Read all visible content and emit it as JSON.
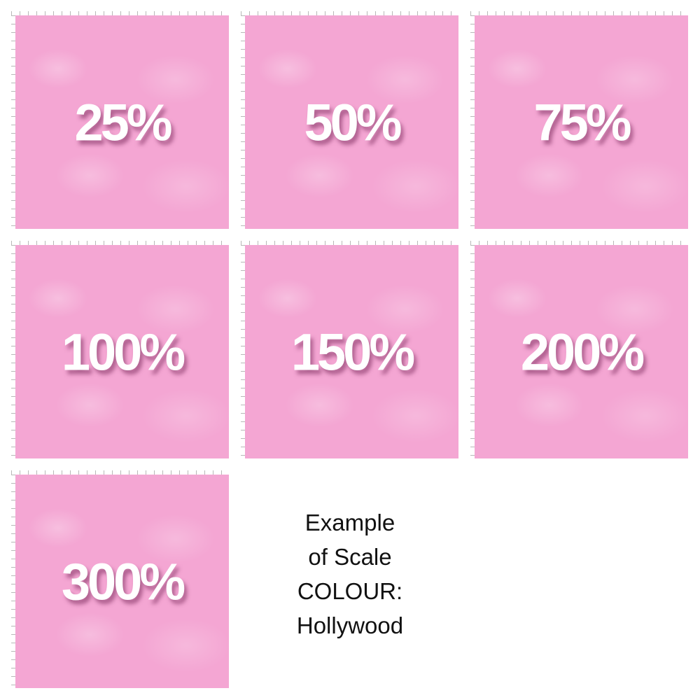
{
  "tiles": [
    {
      "label": "25%"
    },
    {
      "label": "50%"
    },
    {
      "label": "75%"
    },
    {
      "label": "100%"
    },
    {
      "label": "150%"
    },
    {
      "label": "200%"
    },
    {
      "label": "300%"
    }
  ],
  "caption": {
    "lines": [
      "Example",
      "of Scale",
      "COLOUR:",
      "Hollywood"
    ]
  },
  "colors": {
    "fabric": "#f4a6d3",
    "label": "#ffffff"
  }
}
